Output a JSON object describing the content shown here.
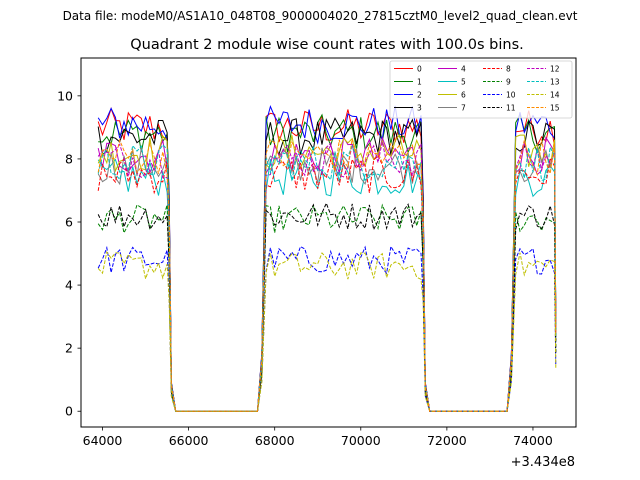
{
  "chart_data": {
    "type": "line",
    "suptitle": "Data file: modeM0/AS1A10_048T08_9000004020_27815cztM0_level2_quad_clean.evt",
    "title": "Quadrant 2 module wise count rates with 100.0s bins.",
    "xlabel": "",
    "ylabel": "",
    "x_offset_label": "+3.434e8",
    "xlim": [
      63500,
      75000
    ],
    "ylim": [
      -0.5,
      11.2
    ],
    "x_ticks": [
      64000,
      66000,
      68000,
      70000,
      72000,
      74000
    ],
    "x_tick_labels": [
      "64000",
      "66000",
      "68000",
      "70000",
      "72000",
      "74000"
    ],
    "y_ticks": [
      0,
      2,
      4,
      6,
      8,
      10
    ],
    "y_tick_labels": [
      "0",
      "2",
      "4",
      "6",
      "8",
      "10"
    ],
    "legend_position": "top-right",
    "segments": [
      {
        "start": 63900,
        "end": 65500
      },
      {
        "start": 67800,
        "end": 71400
      },
      {
        "start": 73600,
        "end": 74500
      }
    ],
    "bin": 100,
    "drop_out": [
      0.75,
      0.1
    ],
    "drop_in": [
      0.2,
      0.75
    ],
    "series": [
      {
        "name": "0",
        "color": "#ff0000",
        "dash": "solid",
        "level": 9.0
      },
      {
        "name": "1",
        "color": "#008000",
        "dash": "solid",
        "level": 8.8
      },
      {
        "name": "2",
        "color": "#0000ff",
        "dash": "solid",
        "level": 9.1
      },
      {
        "name": "3",
        "color": "#000000",
        "dash": "solid",
        "level": 8.7
      },
      {
        "name": "4",
        "color": "#bf00bf",
        "dash": "solid",
        "level": 8.1
      },
      {
        "name": "5",
        "color": "#00bfbf",
        "dash": "solid",
        "level": 7.4
      },
      {
        "name": "6",
        "color": "#bfbf00",
        "dash": "solid",
        "level": 8.2
      },
      {
        "name": "7",
        "color": "#808080",
        "dash": "solid",
        "level": 7.8
      },
      {
        "name": "8",
        "color": "#ff0000",
        "dash": "dashed",
        "level": 7.5
      },
      {
        "name": "9",
        "color": "#008000",
        "dash": "dashed",
        "level": 6.1
      },
      {
        "name": "10",
        "color": "#0000ff",
        "dash": "dashed",
        "level": 4.8
      },
      {
        "name": "11",
        "color": "#000000",
        "dash": "dashed",
        "level": 6.2
      },
      {
        "name": "12",
        "color": "#bf00bf",
        "dash": "dashed",
        "level": 8.0
      },
      {
        "name": "13",
        "color": "#00bfbf",
        "dash": "dashed",
        "level": 7.9
      },
      {
        "name": "14",
        "color": "#bfbf00",
        "dash": "dashed",
        "level": 4.6
      },
      {
        "name": "15",
        "color": "#ff8c00",
        "dash": "dashed",
        "level": 8.1
      }
    ]
  }
}
